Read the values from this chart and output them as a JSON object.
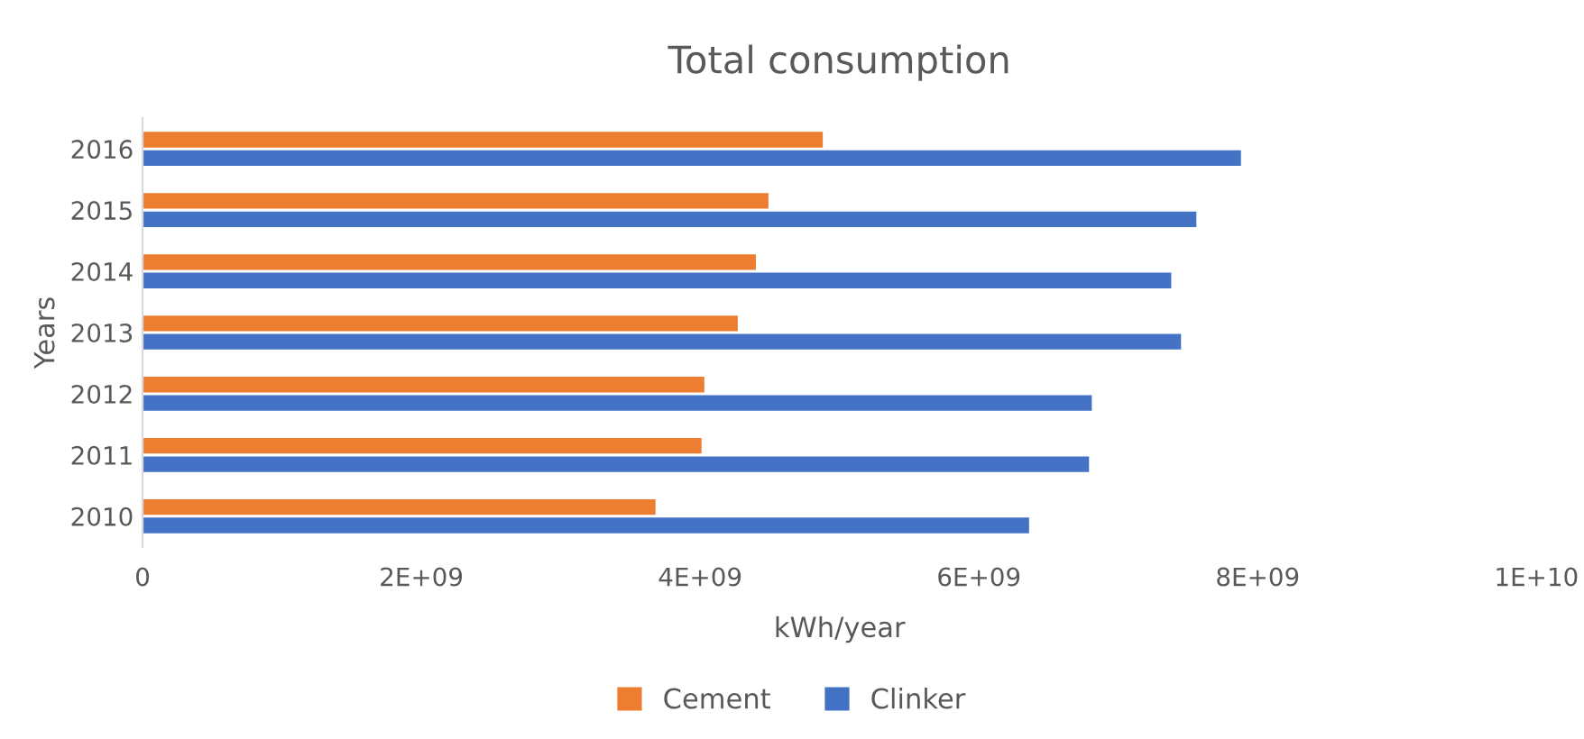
{
  "chart_data": {
    "type": "bar",
    "orientation": "horizontal",
    "title": "Total consumption",
    "xlabel": "kWh/year",
    "ylabel": "Years",
    "categories": [
      "2016",
      "2015",
      "2014",
      "2013",
      "2012",
      "2011",
      "2010"
    ],
    "series": [
      {
        "name": "Cement",
        "color": "#ed7d31",
        "values": [
          4880000000,
          4490000000,
          4400000000,
          4270000000,
          4030000000,
          4010000000,
          3680000000
        ]
      },
      {
        "name": "Clinker",
        "color": "#4472c4",
        "values": [
          7880000000,
          7560000000,
          7380000000,
          7450000000,
          6810000000,
          6790000000,
          6360000000
        ]
      }
    ],
    "xlim": [
      0,
      10000000000
    ],
    "xticks": [
      0,
      {
        "value": 2000000000,
        "label": "2E+09"
      },
      {
        "value": 4000000000,
        "label": "4E+09"
      },
      {
        "value": 6000000000,
        "label": "6E+09"
      },
      {
        "value": 8000000000,
        "label": "8E+09"
      },
      {
        "value": 10000000000,
        "label": "1E+10"
      }
    ],
    "grid": false,
    "legend": "bottom"
  }
}
